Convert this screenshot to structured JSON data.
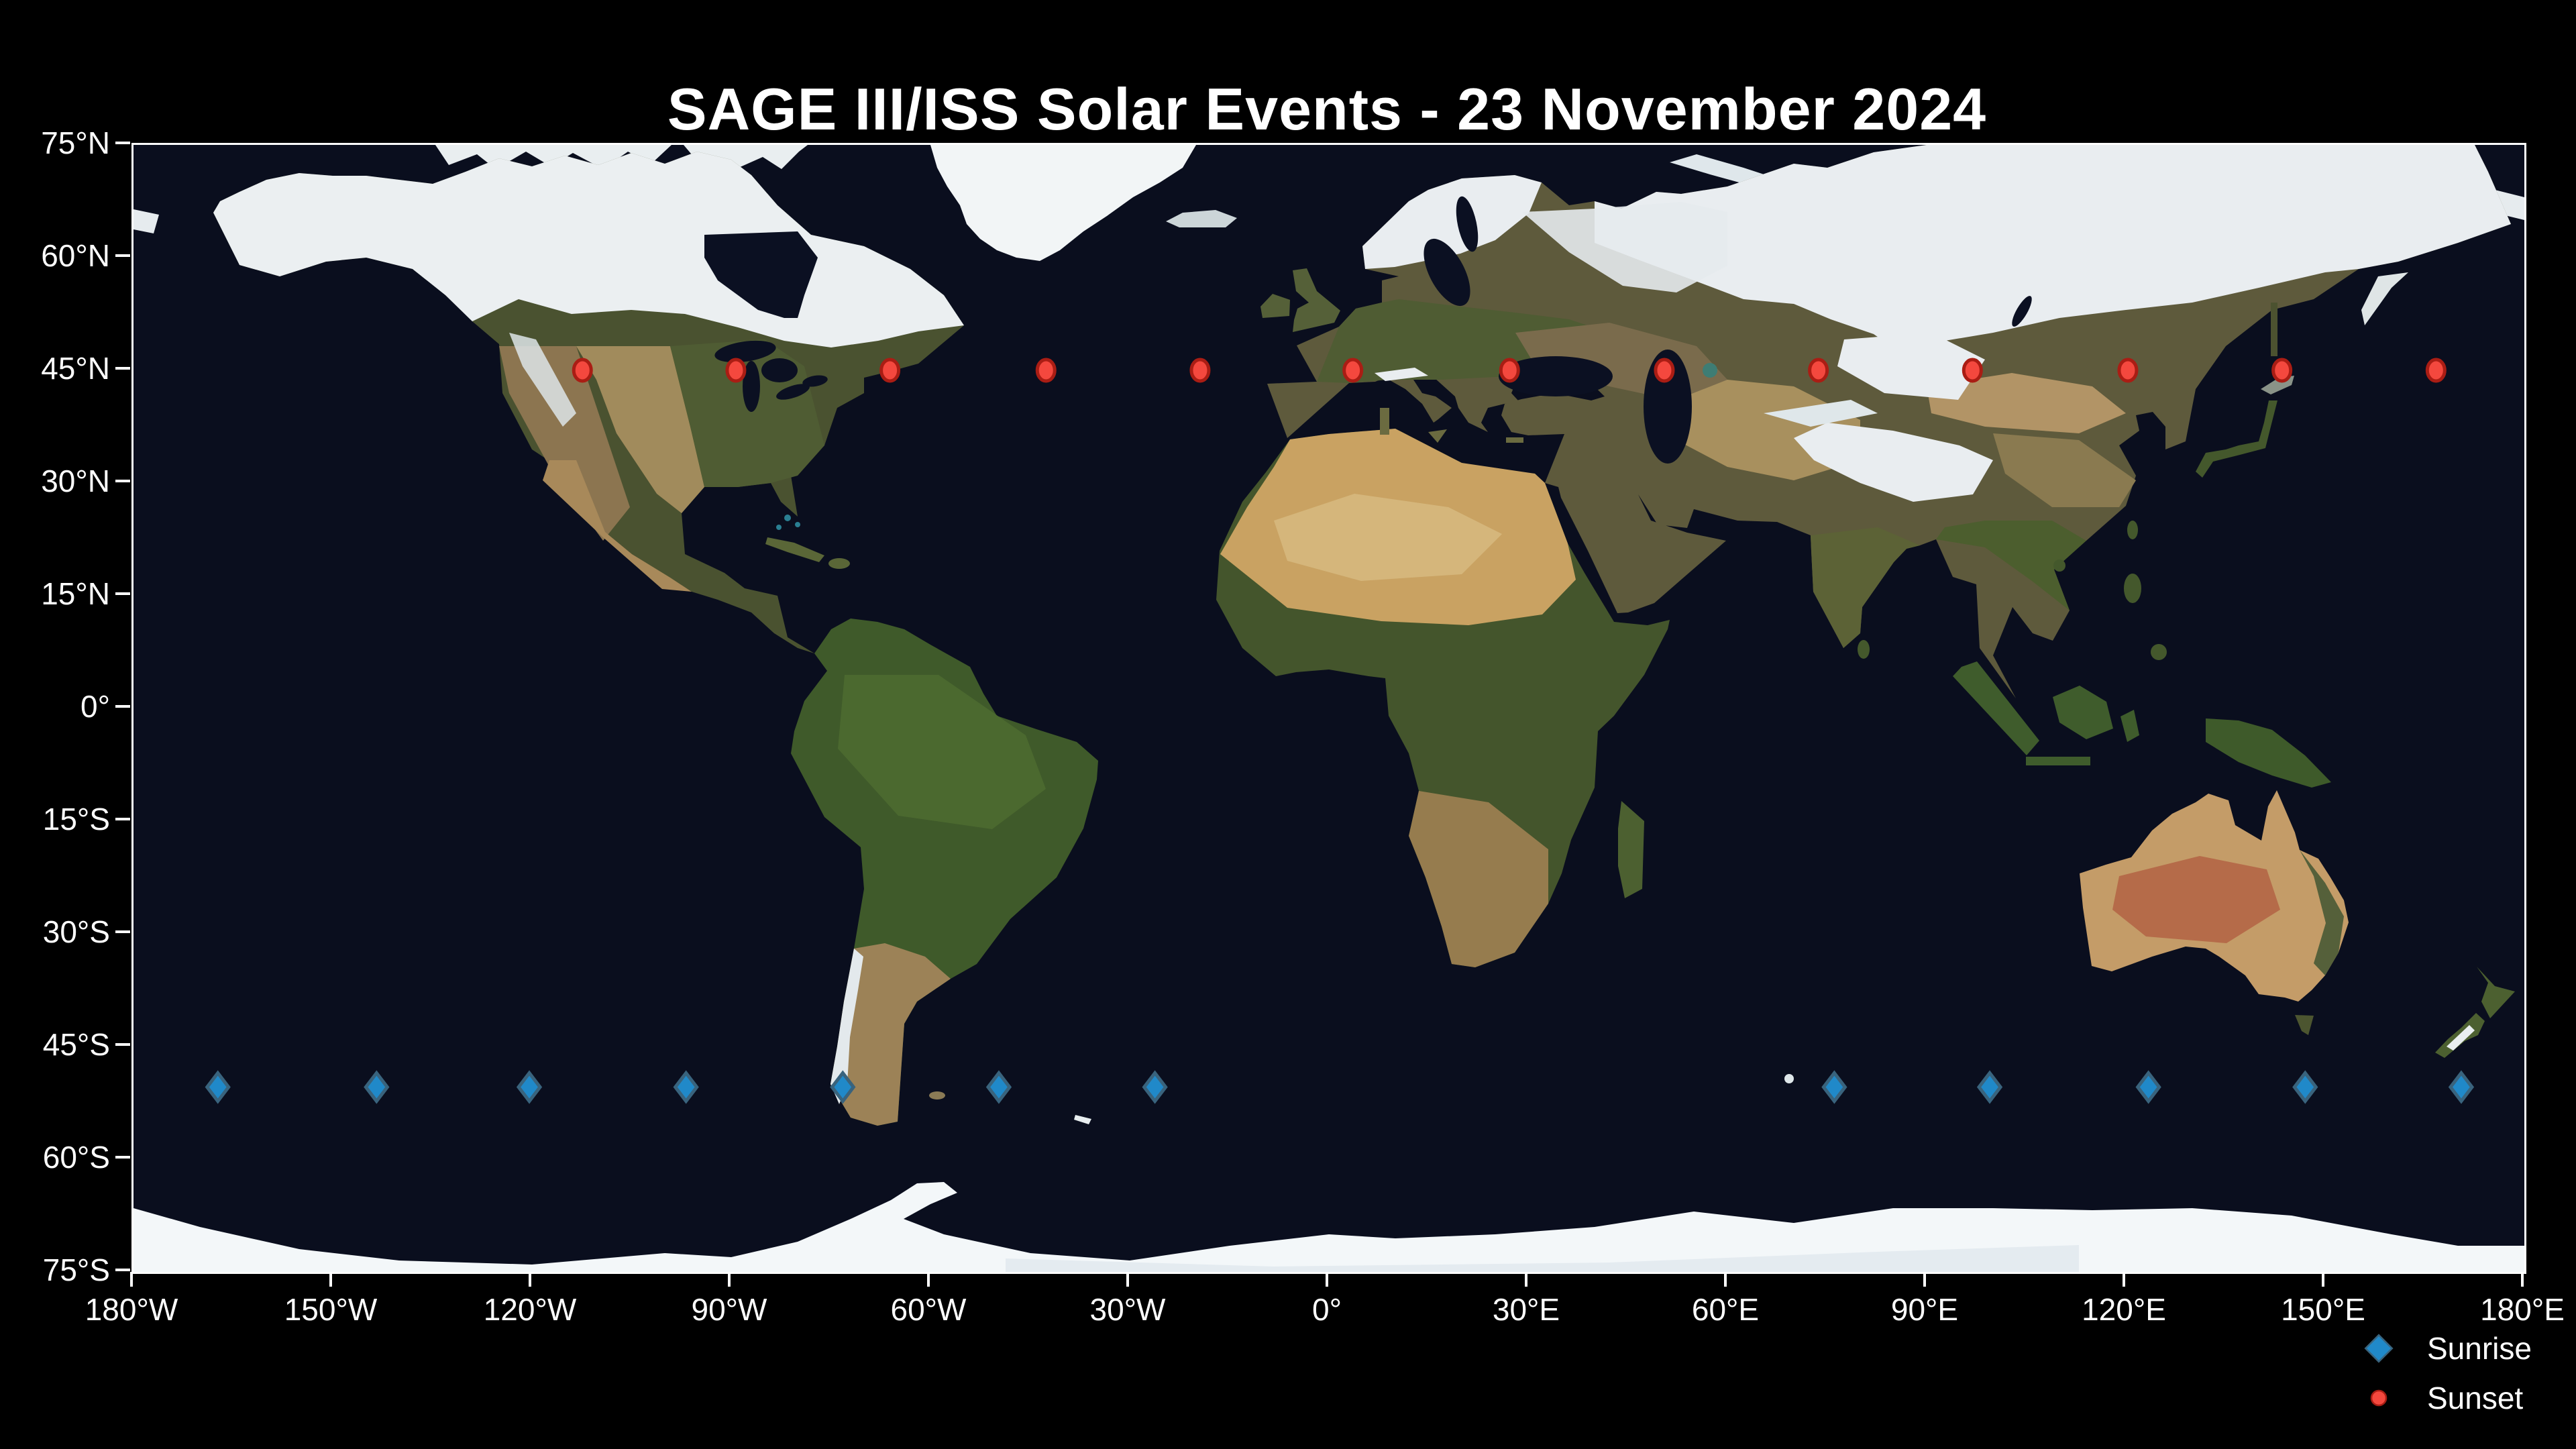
{
  "title": "SAGE III/ISS Solar Events - 23 November 2024",
  "legend": {
    "entries": [
      {
        "label": "Sunrise",
        "marker": "diamond",
        "color": "#2089c9",
        "edge_color": "#39637d"
      },
      {
        "label": "Sunset",
        "marker": "circle",
        "color": "#f4483e",
        "edge_color": "#aa1d14"
      }
    ],
    "position": "lower-right below axes"
  },
  "colors": {
    "background": "#000000",
    "axis_text": "#ffffff",
    "plot_border": "#ffffff",
    "ocean": "#0a0e1e",
    "sunrise_blue": "#2089c9",
    "sunset_red": "#f4483e"
  },
  "chart_data": {
    "type": "scatter",
    "title": "SAGE III/ISS Solar Events - 23 November 2024",
    "basemap": "Blue Marble satellite world map, equirectangular projection, November snow cover",
    "xlabel": "",
    "ylabel": "",
    "xlim": [
      -180,
      180
    ],
    "ylim": [
      -75,
      75
    ],
    "grid": false,
    "x_ticks": [
      {
        "value": -180,
        "label": "180°W"
      },
      {
        "value": -150,
        "label": "150°W"
      },
      {
        "value": -120,
        "label": "120°W"
      },
      {
        "value": -90,
        "label": "90°W"
      },
      {
        "value": -60,
        "label": "60°W"
      },
      {
        "value": -30,
        "label": "30°W"
      },
      {
        "value": 0,
        "label": "0°"
      },
      {
        "value": 30,
        "label": "30°E"
      },
      {
        "value": 60,
        "label": "60°E"
      },
      {
        "value": 90,
        "label": "90°E"
      },
      {
        "value": 120,
        "label": "120°E"
      },
      {
        "value": 150,
        "label": "150°E"
      },
      {
        "value": 180,
        "label": "180°E"
      }
    ],
    "y_ticks": [
      {
        "value": 75,
        "label": "75°N"
      },
      {
        "value": 60,
        "label": "60°N"
      },
      {
        "value": 45,
        "label": "45°N"
      },
      {
        "value": 30,
        "label": "30°N"
      },
      {
        "value": 15,
        "label": "15°N"
      },
      {
        "value": 0,
        "label": "0°"
      },
      {
        "value": -15,
        "label": "15°S"
      },
      {
        "value": -30,
        "label": "30°S"
      },
      {
        "value": -45,
        "label": "45°S"
      },
      {
        "value": -60,
        "label": "60°S"
      },
      {
        "value": -75,
        "label": "75°S"
      }
    ],
    "series": [
      {
        "name": "Sunrise",
        "marker": "diamond",
        "color": "#2089c9",
        "edge_color": "#39637d",
        "lat": -50.4,
        "points_lon": [
          -167.3,
          -143.4,
          -120.4,
          -96.8,
          -73.2,
          -49.7,
          -26.2,
          76.1,
          99.5,
          123.4,
          147.0,
          170.5
        ]
      },
      {
        "name": "Sunset",
        "marker": "circle",
        "color": "#f4483e",
        "edge_color": "#aa1d14",
        "lat": 45.0,
        "points_lon": [
          -112.4,
          -89.3,
          -66.1,
          -42.6,
          -19.4,
          3.6,
          27.2,
          50.5,
          73.7,
          96.9,
          120.3,
          143.5,
          166.7
        ]
      }
    ]
  }
}
